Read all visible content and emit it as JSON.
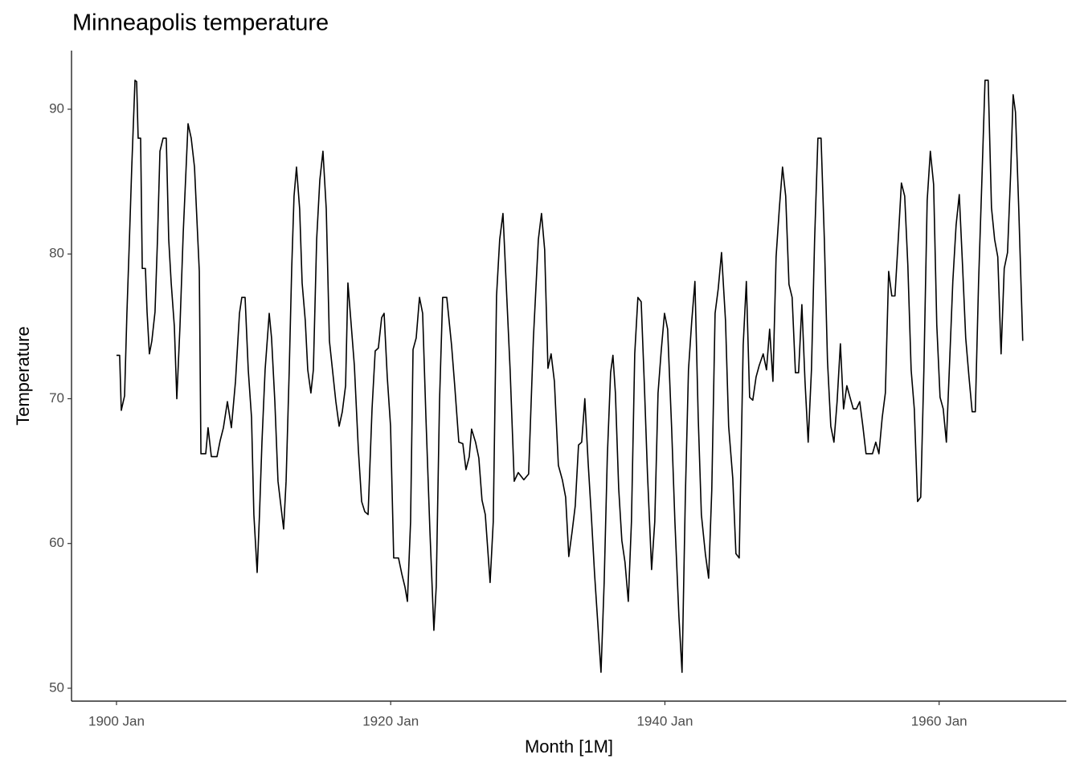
{
  "chart_data": {
    "type": "line",
    "title": "Minneapolis temperature",
    "x_label": "Month [1M]",
    "y_label": "Temperature",
    "xlim": [
      1896.72,
      1969.28
    ],
    "ylim": [
      49.11,
      94.05
    ],
    "xticks": [
      {
        "value": 1900,
        "label": "1900 Jan"
      },
      {
        "value": 1920,
        "label": "1920 Jan"
      },
      {
        "value": 1940,
        "label": "1940 Jan"
      },
      {
        "value": 1960,
        "label": "1960 Jan"
      }
    ],
    "yticks": [
      50,
      60,
      70,
      80,
      90
    ],
    "grid": false,
    "series": [
      {
        "name": "Temperature",
        "color": "#000000",
        "x": [
          1900.0,
          1900.23,
          1900.35,
          1900.59,
          1900.76,
          1900.94,
          1901.11,
          1901.35,
          1901.47,
          1901.58,
          1901.76,
          1901.88,
          1902.11,
          1902.23,
          1902.4,
          1902.58,
          1902.81,
          1902.99,
          1903.17,
          1903.4,
          1903.63,
          1903.81,
          1903.99,
          1904.22,
          1904.4,
          1904.63,
          1904.87,
          1905.22,
          1905.45,
          1905.69,
          1906.04,
          1906.16,
          1906.51,
          1906.68,
          1906.92,
          1907.33,
          1907.56,
          1907.8,
          1908.09,
          1908.38,
          1908.68,
          1908.97,
          1909.14,
          1909.38,
          1909.61,
          1909.85,
          1910.02,
          1910.26,
          1910.43,
          1910.61,
          1910.84,
          1911.14,
          1911.31,
          1911.55,
          1911.78,
          1912.19,
          1912.37,
          1912.6,
          1912.78,
          1912.95,
          1913.13,
          1913.36,
          1913.54,
          1913.77,
          1913.95,
          1914.18,
          1914.36,
          1914.6,
          1914.83,
          1915.06,
          1915.3,
          1915.53,
          1916.0,
          1916.24,
          1916.47,
          1916.71,
          1916.88,
          1917.12,
          1917.35,
          1917.64,
          1917.88,
          1918.11,
          1918.35,
          1918.64,
          1918.87,
          1919.1,
          1919.34,
          1919.52,
          1919.75,
          1919.99,
          1920.22,
          1920.57,
          1920.81,
          1921.04,
          1921.22,
          1921.45,
          1921.63,
          1921.86,
          1922.1,
          1922.33,
          1922.57,
          1922.86,
          1923.15,
          1923.32,
          1923.56,
          1923.79,
          1924.09,
          1924.44,
          1924.67,
          1924.97,
          1925.26,
          1925.49,
          1925.73,
          1925.9,
          1926.19,
          1926.43,
          1926.66,
          1926.9,
          1927.25,
          1927.48,
          1927.72,
          1927.95,
          1928.19,
          1928.42,
          1928.71,
          1929.01,
          1929.3,
          1929.71,
          1930.06,
          1930.41,
          1930.77,
          1931.0,
          1931.23,
          1931.47,
          1931.7,
          1931.94,
          1932.23,
          1932.52,
          1932.76,
          1932.99,
          1933.23,
          1933.46,
          1933.7,
          1933.93,
          1934.16,
          1934.4,
          1934.63,
          1934.87,
          1935.16,
          1935.34,
          1935.57,
          1935.8,
          1936.04,
          1936.21,
          1936.39,
          1936.63,
          1936.86,
          1937.09,
          1937.33,
          1937.56,
          1937.8,
          1938.03,
          1938.27,
          1938.5,
          1938.73,
          1939.03,
          1939.26,
          1939.5,
          1939.73,
          1939.97,
          1940.2,
          1940.49,
          1940.73,
          1941.02,
          1941.25,
          1941.49,
          1941.72,
          1941.96,
          1942.19,
          1942.43,
          1942.66,
          1942.95,
          1943.19,
          1943.42,
          1943.66,
          1943.89,
          1944.13,
          1944.42,
          1944.65,
          1944.95,
          1945.18,
          1945.42,
          1945.71,
          1945.94,
          1946.18,
          1946.41,
          1946.65,
          1946.88,
          1947.17,
          1947.41,
          1947.64,
          1947.88,
          1948.11,
          1948.35,
          1948.58,
          1948.81,
          1949.05,
          1949.28,
          1949.52,
          1949.75,
          1949.99,
          1950.22,
          1950.45,
          1950.69,
          1950.92,
          1951.16,
          1951.39,
          1951.63,
          1951.86,
          1952.1,
          1952.33,
          1952.56,
          1952.8,
          1953.03,
          1953.27,
          1953.5,
          1953.74,
          1953.97,
          1954.21,
          1954.44,
          1954.67,
          1955.14,
          1955.38,
          1955.61,
          1955.85,
          1956.08,
          1956.32,
          1956.55,
          1956.78,
          1957.02,
          1957.25,
          1957.49,
          1957.72,
          1957.96,
          1958.19,
          1958.43,
          1958.66,
          1958.89,
          1959.13,
          1959.36,
          1959.6,
          1959.83,
          1960.07,
          1960.3,
          1960.53,
          1960.77,
          1961.0,
          1961.24,
          1961.47,
          1961.71,
          1961.94,
          1962.18,
          1962.41,
          1962.64,
          1962.88,
          1963.11,
          1963.35,
          1963.58,
          1963.82,
          1964.05,
          1964.28,
          1964.52,
          1964.75,
          1964.99,
          1965.22,
          1965.4,
          1965.57,
          1965.81,
          1966.1
        ],
        "values": [
          73,
          73,
          69.2,
          70.2,
          75.9,
          80.9,
          85.9,
          92,
          91.9,
          88,
          88,
          79,
          79,
          76,
          73.1,
          74,
          76,
          81,
          87.1,
          88,
          88,
          81,
          78,
          75,
          70,
          75,
          81.5,
          89,
          88,
          86,
          78.8,
          66.2,
          66.2,
          68,
          66,
          66,
          67.1,
          68,
          69.8,
          68,
          71.2,
          75.9,
          77,
          77,
          72,
          68.7,
          62,
          58,
          62,
          67,
          72,
          75.9,
          74.2,
          69.8,
          64.3,
          61,
          64.3,
          72,
          79,
          84,
          86,
          83.1,
          78,
          75.4,
          72,
          70.4,
          72,
          81,
          85.1,
          87.1,
          83.1,
          74,
          69.8,
          68.1,
          69.1,
          70.9,
          78,
          75.1,
          72.3,
          66.5,
          62.9,
          62.2,
          62,
          69.3,
          73.3,
          73.5,
          75.6,
          75.9,
          71.5,
          68.1,
          59,
          59,
          57.9,
          57,
          56,
          61.5,
          73.4,
          74.2,
          77,
          75.9,
          68.7,
          60.9,
          54,
          57,
          69.8,
          77,
          77,
          73.7,
          70.9,
          67,
          66.9,
          65.1,
          66,
          67.9,
          67,
          65.9,
          63,
          62,
          57.3,
          61.5,
          77.1,
          81,
          82.8,
          78,
          72,
          64.3,
          64.9,
          64.4,
          64.8,
          74.2,
          81,
          82.8,
          80.3,
          72.1,
          73.1,
          71.2,
          65.4,
          64.4,
          63.2,
          59.1,
          60.8,
          62.6,
          66.8,
          67,
          70,
          65.6,
          62,
          57.9,
          53.7,
          51.1,
          57.3,
          66,
          71.8,
          73,
          70.4,
          63.8,
          60.2,
          58.7,
          56,
          61.5,
          73.1,
          77,
          76.7,
          71,
          64.8,
          58.2,
          61.5,
          70.4,
          73.3,
          75.9,
          74.8,
          68,
          61.5,
          55,
          51.1,
          63.2,
          72,
          75.4,
          78.1,
          68.7,
          62,
          59.3,
          57.6,
          63.7,
          75.9,
          77.6,
          80.1,
          75.4,
          68.1,
          64.5,
          59.3,
          59,
          73.7,
          78.1,
          70.1,
          69.9,
          71.5,
          72.3,
          73.1,
          72,
          74.8,
          71.2,
          79.8,
          83.2,
          86,
          84,
          77.9,
          77,
          71.8,
          71.8,
          76.5,
          71.2,
          67,
          72,
          81,
          88,
          88,
          81,
          72.6,
          68.1,
          67,
          69.8,
          73.8,
          69.3,
          70.9,
          70.1,
          69.3,
          69.3,
          69.8,
          68.1,
          66.2,
          66.2,
          67,
          66.2,
          68.7,
          70.4,
          78.8,
          77.1,
          77.1,
          81,
          84.9,
          84,
          79.2,
          72,
          69.3,
          62.9,
          63.2,
          72,
          83.7,
          87.1,
          84.8,
          75.1,
          70.1,
          69.3,
          67,
          72.6,
          78.1,
          82,
          84.1,
          79.2,
          74.2,
          71.5,
          69.1,
          69.1,
          78.1,
          84.8,
          92,
          92,
          83.2,
          81,
          79.8,
          73.1,
          79,
          80.1,
          85.6,
          91,
          89.8,
          83.1,
          74
        ]
      }
    ]
  }
}
